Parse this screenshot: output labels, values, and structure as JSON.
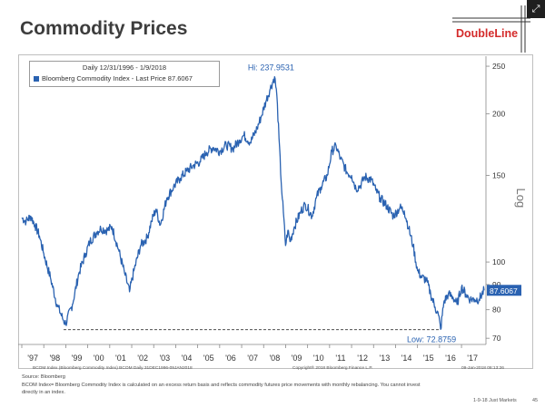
{
  "header": {
    "title": "Commodity Prices",
    "logo_text": "DoubleLine",
    "corner_icon": "expand-icon"
  },
  "legend": {
    "line1": "Daily 12/31/1996 - 1/9/2018",
    "line2": "Bloomberg Commodity Index - Last Price 87.6067",
    "series_color": "#2a62b1"
  },
  "bloomberg_footer": {
    "left": "BCOM Index (Bloomberg Commodity Index) BCOM  Daily 31DEC1996-09JAN2018",
    "center": "Copyright® 2018 Bloomberg Finance L.P.",
    "right": "09-Jan-2018 08:13:26"
  },
  "source": {
    "label": "Source: Bloomberg",
    "note": "BCOM Index= Bloomberg Commodity Index is calculated on an excess return basis and reflects commodity futures price movements with monthly rebalancing. You cannot invest directly in an index."
  },
  "page_footer": {
    "text": "1-9-18 Just Markets",
    "page": "45"
  },
  "chart_data": {
    "type": "line",
    "title": "",
    "xlabel": "",
    "ylabel": "Log",
    "y_scale": "log",
    "ylim": [
      68,
      262
    ],
    "y_ticks": [
      70,
      80,
      90,
      100,
      150,
      200,
      250
    ],
    "xlim": [
      1997.0,
      2018.03
    ],
    "x_tick_labels": [
      "'97",
      "'98",
      "'99",
      "'00",
      "'01",
      "'02",
      "'03",
      "'04",
      "'05",
      "'06",
      "'07",
      "'08",
      "'09",
      "'10",
      "'11",
      "'12",
      "'13",
      "'14",
      "'15",
      "'16",
      "'17"
    ],
    "x_tick_years": [
      1997,
      1998,
      1999,
      2000,
      2001,
      2002,
      2003,
      2004,
      2005,
      2006,
      2007,
      2008,
      2009,
      2010,
      2011,
      2012,
      2013,
      2014,
      2015,
      2016,
      2017
    ],
    "series": [
      {
        "name": "Bloomberg Commodity Index",
        "color": "#2a62b1",
        "x": [
          1997.0,
          1997.2,
          1997.4,
          1997.6,
          1997.8,
          1998.0,
          1998.3,
          1998.6,
          1998.9,
          1999.0,
          1999.3,
          1999.6,
          1999.9,
          2000.1,
          2000.4,
          2000.6,
          2000.9,
          2001.1,
          2001.4,
          2001.7,
          2001.9,
          2002.1,
          2002.4,
          2002.7,
          2002.9,
          2003.1,
          2003.3,
          2003.6,
          2003.9,
          2004.2,
          2004.5,
          2004.8,
          2005.1,
          2005.4,
          2005.7,
          2006.0,
          2006.3,
          2006.6,
          2006.9,
          2007.1,
          2007.4,
          2007.7,
          2007.9,
          2008.1,
          2008.3,
          2008.5,
          2008.6,
          2008.7,
          2008.8,
          2008.9,
          2009.0,
          2009.1,
          2009.2,
          2009.4,
          2009.7,
          2009.9,
          2010.2,
          2010.4,
          2010.6,
          2010.9,
          2011.1,
          2011.3,
          2011.5,
          2011.8,
          2012.0,
          2012.2,
          2012.4,
          2012.6,
          2012.9,
          2013.1,
          2013.3,
          2013.6,
          2013.9,
          2014.2,
          2014.4,
          2014.6,
          2014.8,
          2015.0,
          2015.2,
          2015.4,
          2015.6,
          2015.8,
          2015.95,
          2016.05,
          2016.2,
          2016.4,
          2016.6,
          2016.8,
          2017.0,
          2017.2,
          2017.4,
          2017.6,
          2017.8,
          2018.03
        ],
        "y": [
          123,
          121,
          124,
          119,
          113,
          104,
          93,
          82,
          76,
          75,
          82,
          95,
          104,
          110,
          115,
          117,
          116,
          118,
          106,
          94,
          87,
          96,
          108,
          112,
          121,
          128,
          119,
          135,
          142,
          148,
          153,
          157,
          160,
          167,
          171,
          168,
          173,
          170,
          177,
          181,
          175,
          187,
          198,
          212,
          225,
          238,
          218,
          178,
          145,
          126,
          108,
          116,
          110,
          118,
          127,
          131,
          124,
          135,
          142,
          150,
          168,
          172,
          162,
          152,
          150,
          141,
          143,
          149,
          147,
          140,
          135,
          130,
          124,
          129,
          127,
          117,
          108,
          96,
          93,
          92,
          86,
          81,
          78,
          73,
          83,
          86,
          85,
          82,
          89,
          86,
          84,
          84,
          84,
          87.6067
        ]
      }
    ],
    "annotations": [
      {
        "text": "Hi: 237.9531",
        "x": 2008.5,
        "y": 237.9531
      },
      {
        "text": "Low: 72.8759",
        "x": 2016.05,
        "y": 72.8759
      }
    ],
    "low_line_value": 72.8759,
    "last_price_label": "87.6067",
    "last_price_value": 87.6067
  }
}
